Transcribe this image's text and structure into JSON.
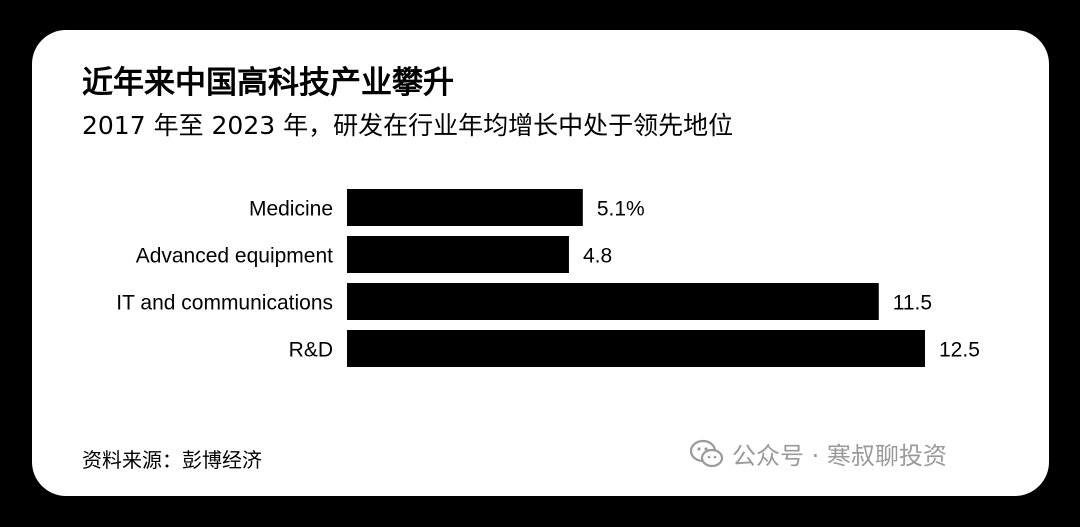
{
  "header": {
    "title": "近年来中国高科技产业攀升",
    "subtitle": "2017 年至 2023 年，研发在行业年均增长中处于领先地位"
  },
  "chart_data": {
    "type": "bar",
    "orientation": "horizontal",
    "categories": [
      "Medicine",
      "Advanced equipment",
      "IT and communications",
      "R&D"
    ],
    "values": [
      5.1,
      4.8,
      11.5,
      12.5
    ],
    "value_labels": [
      "5.1%",
      "4.8",
      "11.5",
      "12.5"
    ],
    "xlim": [
      0,
      12.5
    ],
    "bar_color": "#000000",
    "grid": false
  },
  "footer": {
    "source": "资料来源：彭博经济"
  },
  "watermark": {
    "icon": "wechat-icon",
    "text": "公众号 · 寒叔聊投资",
    "color": "#9a9a9a"
  }
}
